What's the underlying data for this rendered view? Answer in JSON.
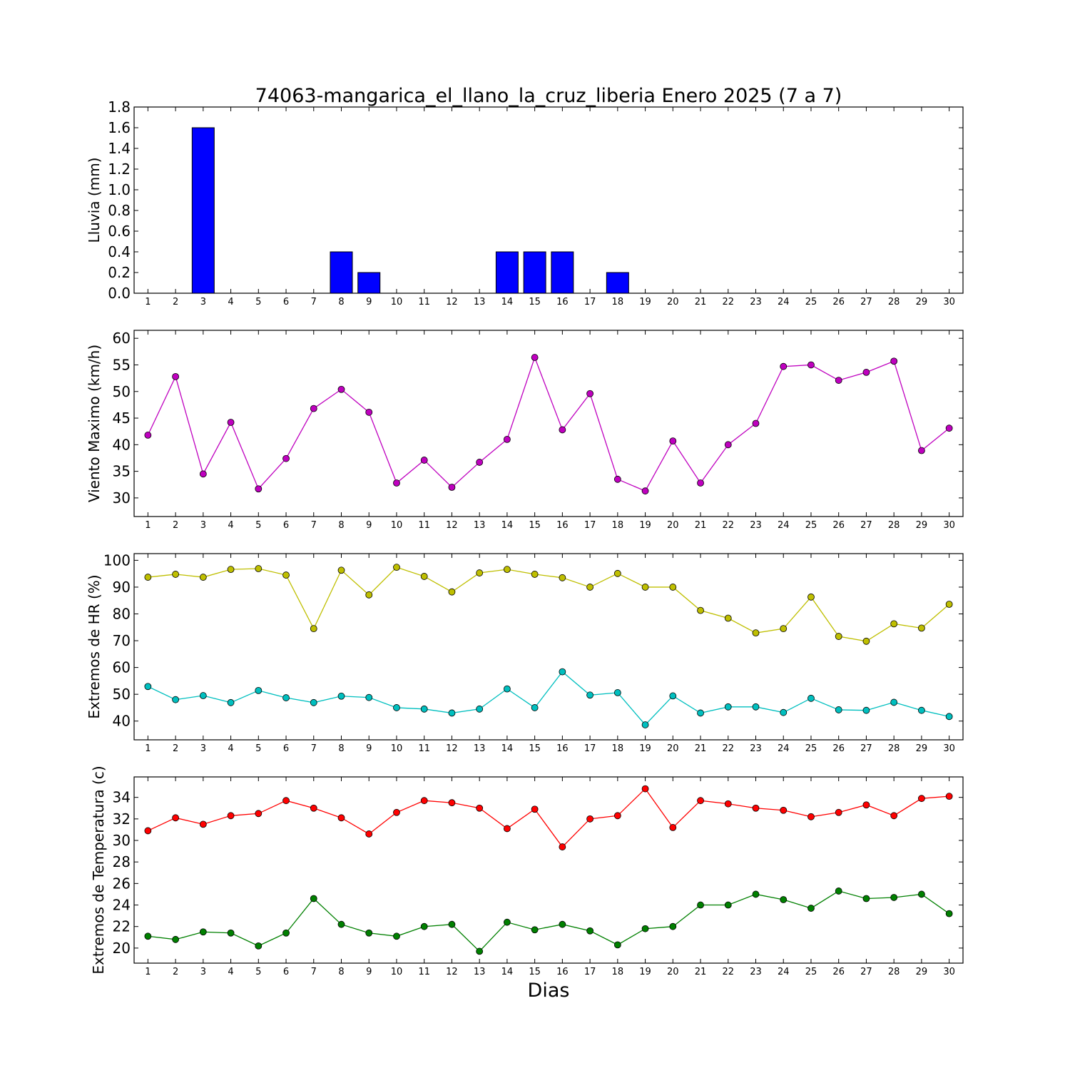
{
  "chart_data": {
    "title": "74063-mangarica_el_llano_la_cruz_liberia Enero 2025  (7 a 7)",
    "xlabel": "Dias",
    "days": [
      1,
      2,
      3,
      4,
      5,
      6,
      7,
      8,
      9,
      10,
      11,
      12,
      13,
      14,
      15,
      16,
      17,
      18,
      19,
      20,
      21,
      22,
      23,
      24,
      25,
      26,
      27,
      28,
      29,
      30
    ],
    "panels": [
      {
        "id": "lluvia",
        "type": "bar",
        "ylabel": "Lluvia (mm)",
        "ylim": [
          0,
          1.8
        ],
        "yticks": [
          "0.0",
          "0.2",
          "0.4",
          "0.6",
          "0.8",
          "1.0",
          "1.2",
          "1.4",
          "1.6",
          "1.8"
        ],
        "ytick_values": [
          0,
          0.2,
          0.4,
          0.6,
          0.8,
          1.0,
          1.2,
          1.4,
          1.6,
          1.8
        ],
        "series": [
          {
            "color": "#0000ff",
            "values": [
              0,
              0,
              1.6,
              0,
              0,
              0,
              0,
              0.4,
              0.2,
              0,
              0,
              0,
              0,
              0.4,
              0.4,
              0.4,
              0,
              0.2,
              0,
              0,
              0,
              0,
              0,
              0,
              0,
              0,
              0,
              0,
              0,
              0
            ]
          }
        ]
      },
      {
        "id": "viento",
        "type": "line",
        "ylabel": "Viento Maximo (km/h)",
        "ylim": [
          26.5,
          61.5
        ],
        "yticks": [
          "30",
          "35",
          "40",
          "45",
          "50",
          "55",
          "60"
        ],
        "ytick_values": [
          30,
          35,
          40,
          45,
          50,
          55,
          60
        ],
        "series": [
          {
            "color": "#bf00bf",
            "values": [
              41.8,
              52.8,
              34.5,
              44.2,
              31.7,
              37.4,
              46.8,
              50.4,
              46.1,
              32.8,
              37.1,
              32.0,
              36.7,
              41.0,
              56.4,
              42.8,
              49.6,
              33.5,
              31.3,
              40.7,
              32.8,
              40.0,
              44.0,
              54.7,
              55.0,
              52.1,
              53.6,
              55.7,
              38.9,
              43.1
            ]
          }
        ]
      },
      {
        "id": "hr",
        "type": "line",
        "ylabel": "Extremos de HR (%)",
        "ylim": [
          33,
          102.5
        ],
        "yticks": [
          "40",
          "50",
          "60",
          "70",
          "80",
          "90",
          "100"
        ],
        "ytick_values": [
          40,
          50,
          60,
          70,
          80,
          90,
          100
        ],
        "series": [
          {
            "color": "#bfbf00",
            "values": [
              93.7,
              94.8,
              93.7,
              96.6,
              96.9,
              94.5,
              74.5,
              96.3,
              87.1,
              97.4,
              94.0,
              88.2,
              95.3,
              96.6,
              94.8,
              93.5,
              90.0,
              95.1,
              90.0,
              90.0,
              81.3,
              78.4,
              72.9,
              74.5,
              86.3,
              71.6,
              69.8,
              76.3,
              74.7,
              83.6
            ]
          },
          {
            "color": "#00bfbf",
            "values": [
              52.9,
              48.0,
              49.5,
              46.9,
              51.4,
              48.7,
              46.9,
              49.3,
              48.8,
              45.0,
              44.5,
              43.0,
              44.5,
              52.0,
              45.0,
              58.4,
              49.7,
              50.6,
              38.6,
              49.4,
              43.0,
              45.3,
              45.3,
              43.2,
              48.5,
              44.2,
              44.0,
              47.0,
              44.0,
              41.7
            ]
          }
        ]
      },
      {
        "id": "temperatura",
        "type": "line",
        "ylabel": "Extremos de Temperatura (c)",
        "ylim": [
          18.6,
          35.9
        ],
        "yticks": [
          "20",
          "22",
          "24",
          "26",
          "28",
          "30",
          "32",
          "34"
        ],
        "ytick_values": [
          20,
          22,
          24,
          26,
          28,
          30,
          32,
          34
        ],
        "series": [
          {
            "color": "#ff0000",
            "values": [
              30.9,
              32.1,
              31.5,
              32.3,
              32.5,
              33.7,
              33.0,
              32.1,
              30.6,
              32.6,
              33.7,
              33.5,
              33.0,
              31.1,
              32.9,
              29.4,
              32.0,
              32.3,
              34.8,
              31.2,
              33.7,
              33.4,
              33.0,
              32.8,
              32.2,
              32.6,
              33.3,
              32.3,
              33.9,
              34.1
            ]
          },
          {
            "color": "#008000",
            "values": [
              21.1,
              20.8,
              21.5,
              21.4,
              20.2,
              21.4,
              24.6,
              22.2,
              21.4,
              21.1,
              22.0,
              22.2,
              19.7,
              22.4,
              21.7,
              22.2,
              21.6,
              20.3,
              21.8,
              22.0,
              24.0,
              24.0,
              25.0,
              24.5,
              23.7,
              25.3,
              24.6,
              24.7,
              25.0,
              23.2
            ]
          }
        ]
      }
    ]
  }
}
